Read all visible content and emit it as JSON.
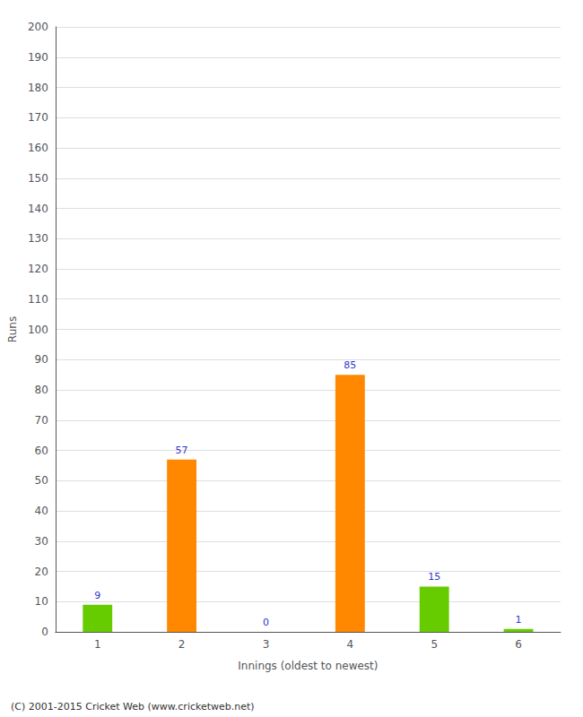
{
  "chart_data": {
    "type": "bar",
    "xlabel": "Innings (oldest to newest)",
    "ylabel": "Runs",
    "categories": [
      "1",
      "2",
      "3",
      "4",
      "5",
      "6"
    ],
    "values": [
      9,
      57,
      0,
      85,
      15,
      1
    ],
    "colors": [
      "#66cc00",
      "#ff8800",
      "#ff8800",
      "#ff8800",
      "#66cc00",
      "#66cc00"
    ],
    "ylim": [
      0,
      200
    ],
    "yticks": [
      0,
      10,
      20,
      30,
      40,
      50,
      60,
      70,
      80,
      90,
      100,
      110,
      120,
      130,
      140,
      150,
      160,
      170,
      180,
      190,
      200
    ],
    "grid": true,
    "data_labels": true,
    "annotations": [
      "(C) 2001-2015 Cricket Web (www.cricketweb.net)"
    ]
  }
}
